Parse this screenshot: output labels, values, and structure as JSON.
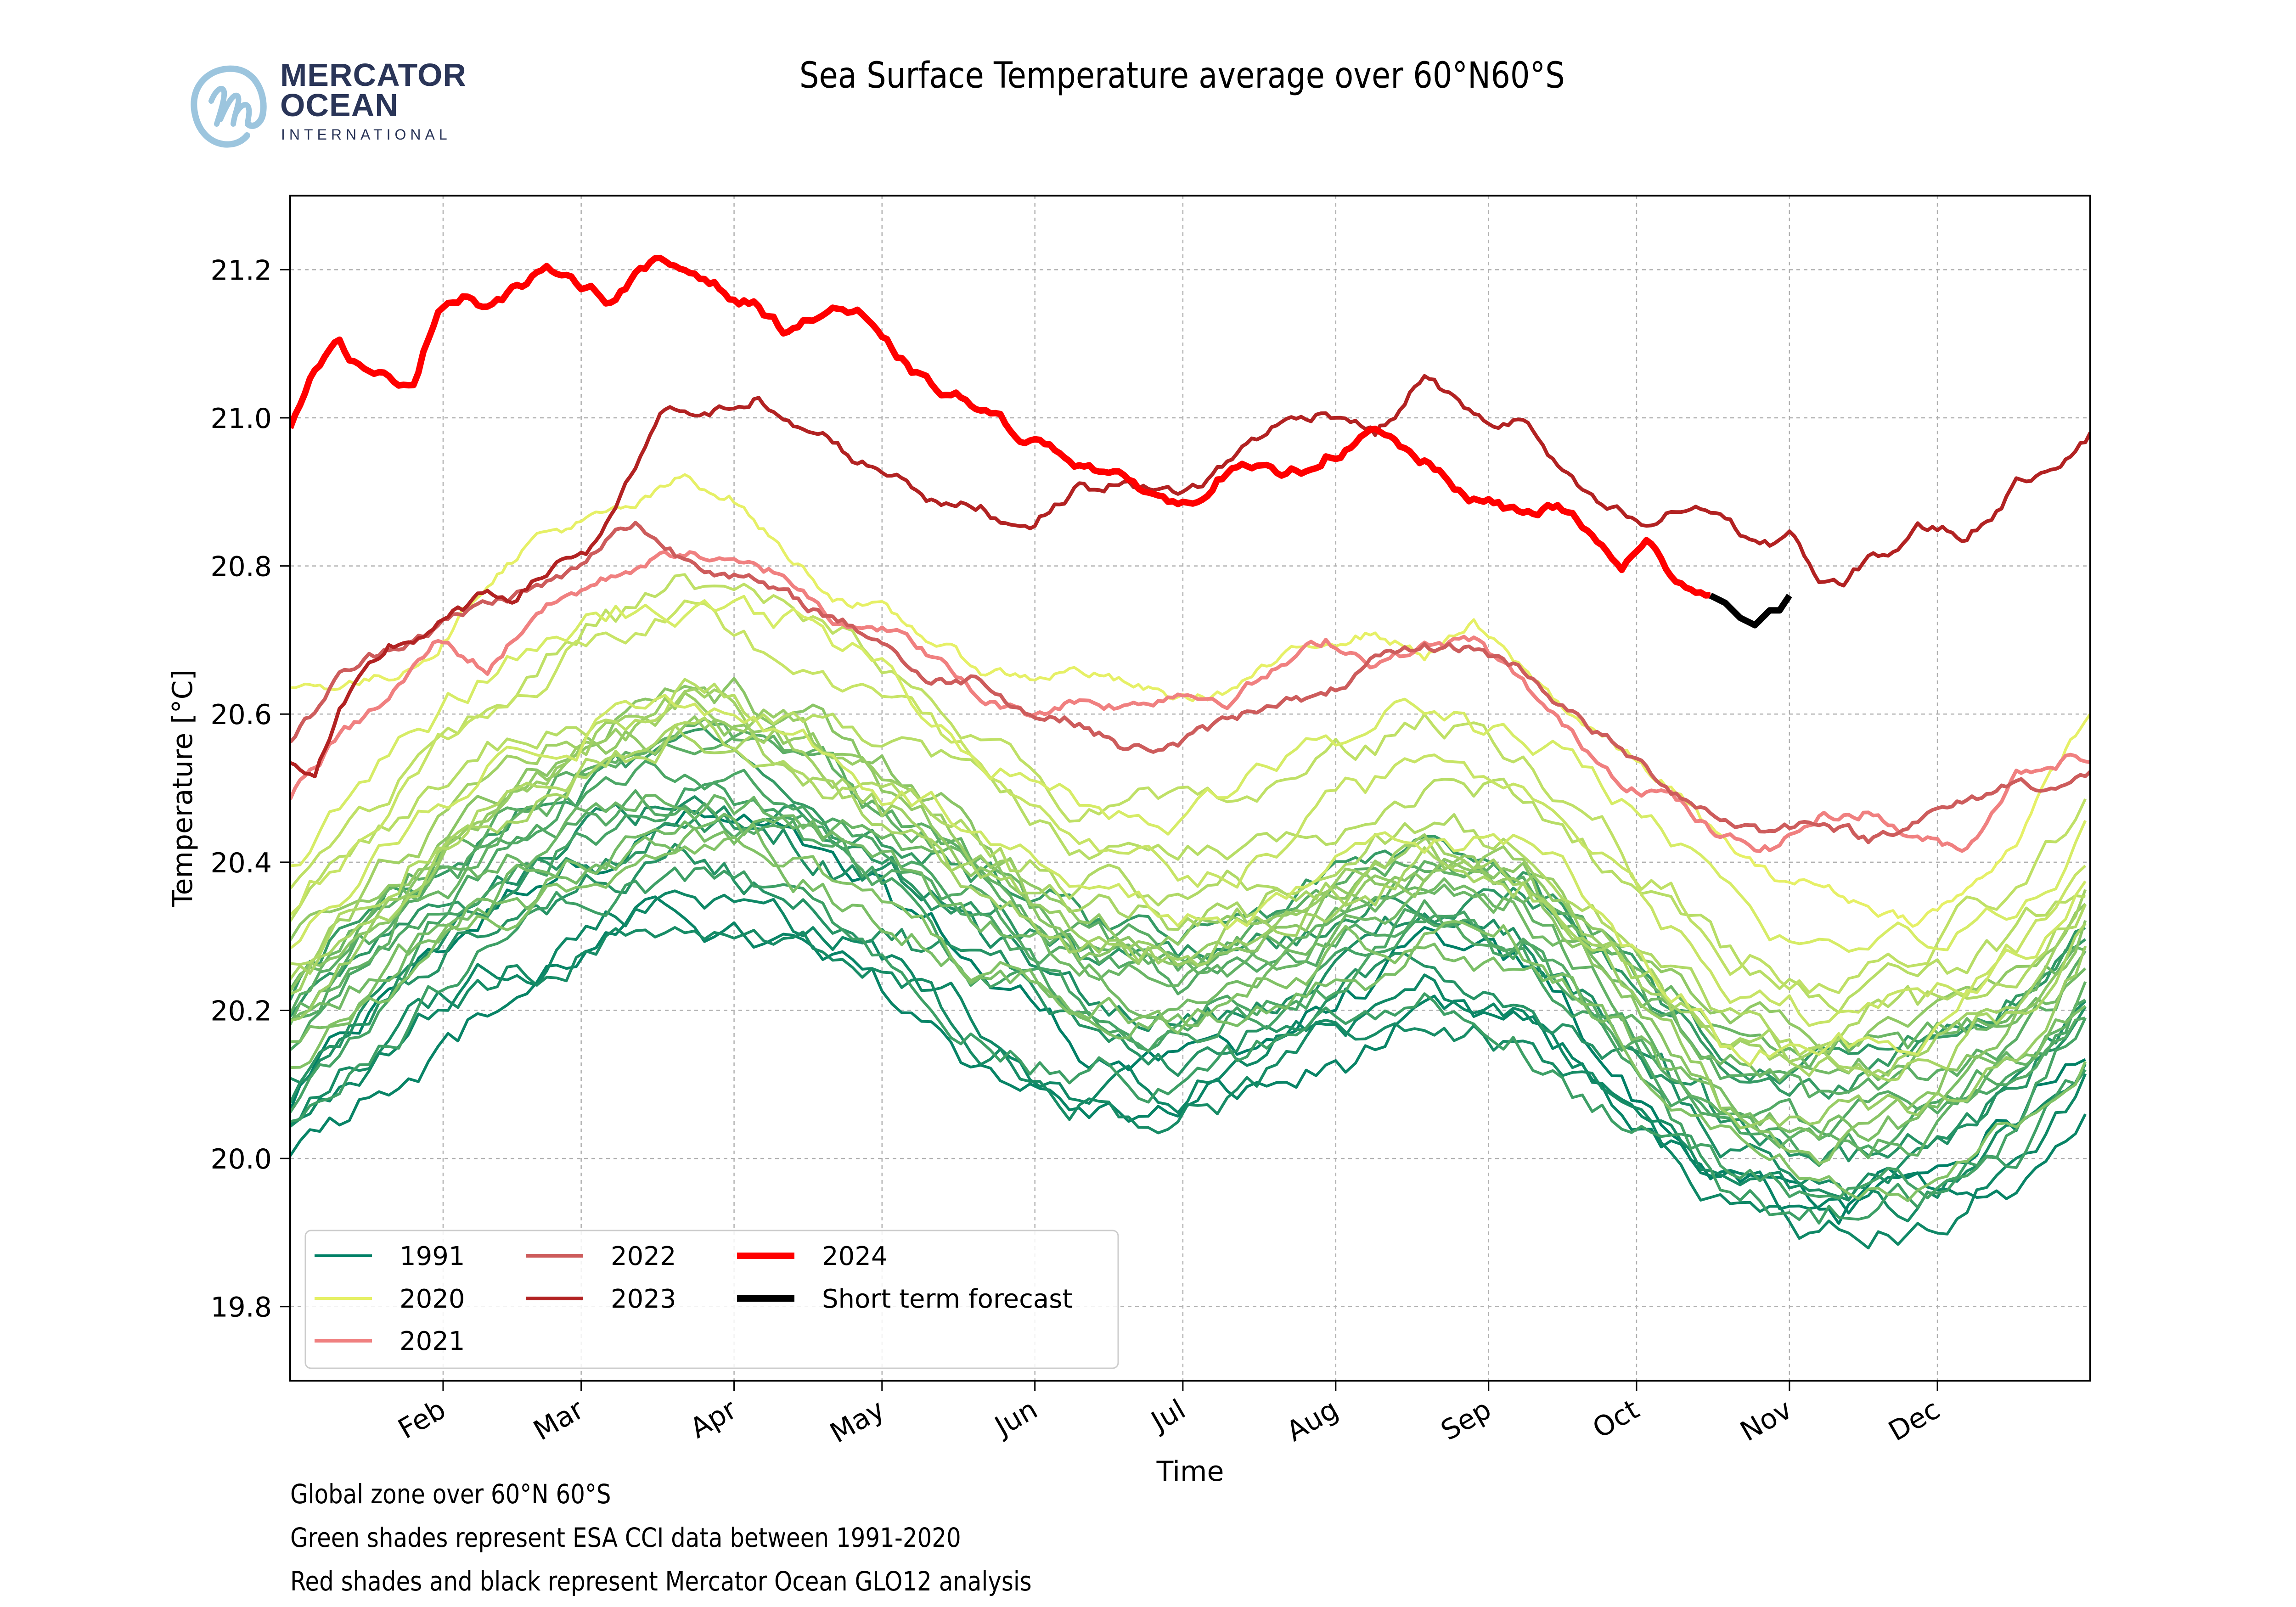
{
  "logo": {
    "line1": "MERCATOR",
    "line2": "OCEAN",
    "line3": "INTERNATIONAL",
    "brand_color": "#2a3558",
    "mark_color": "#9cc5de"
  },
  "footnotes": [
    "Global zone over 60°N 60°S",
    "Green shades represent ESA CCI data between 1991-2020",
    "Red shades and black represent Mercator Ocean GLO12 analysis"
  ],
  "chart_data": {
    "type": "line",
    "title": "Sea Surface Temperature average over 60°N60°S",
    "xlabel": "Time",
    "ylabel": "Temperature [°C]",
    "xlim_day_of_year": [
      0,
      365
    ],
    "ylim": [
      19.7,
      21.3
    ],
    "grid": true,
    "legend_position": "lower-left",
    "x_ticks": [
      {
        "label": "Feb",
        "day": 31
      },
      {
        "label": "Mar",
        "day": 59
      },
      {
        "label": "Apr",
        "day": 90
      },
      {
        "label": "May",
        "day": 120
      },
      {
        "label": "Jun",
        "day": 151
      },
      {
        "label": "Jul",
        "day": 181
      },
      {
        "label": "Aug",
        "day": 212
      },
      {
        "label": "Sep",
        "day": 243
      },
      {
        "label": "Oct",
        "day": 273
      },
      {
        "label": "Nov",
        "day": 304
      },
      {
        "label": "Dec",
        "day": 334
      }
    ],
    "y_ticks": [
      19.8,
      20.0,
      20.2,
      20.4,
      20.6,
      20.8,
      21.0,
      21.2
    ],
    "legend": [
      {
        "label": "1991",
        "color": "#008066"
      },
      {
        "label": "2020",
        "color": "#e6f066"
      },
      {
        "label": "2021",
        "color": "#f08080"
      },
      {
        "label": "2022",
        "color": "#cd5c5c"
      },
      {
        "label": "2023",
        "color": "#b22222"
      },
      {
        "label": "2024",
        "color": "#ff0000"
      },
      {
        "label": "Short term forecast",
        "color": "#000000"
      }
    ],
    "series": [
      {
        "name": "2024",
        "color": "#ff0000",
        "width": "thick",
        "x": [
          0,
          5,
          10,
          15,
          20,
          25,
          30,
          35,
          40,
          45,
          50,
          55,
          60,
          65,
          70,
          75,
          80,
          85,
          90,
          95,
          100,
          105,
          110,
          115,
          120,
          125,
          130,
          135,
          140,
          145,
          150,
          155,
          160,
          165,
          170,
          175,
          180,
          185,
          190,
          195,
          200,
          205,
          210,
          215,
          220,
          225,
          230,
          235,
          240,
          245,
          250,
          255,
          260,
          265,
          270,
          275,
          280,
          285,
          288
        ],
        "values": [
          20.99,
          21.07,
          21.1,
          21.06,
          21.05,
          21.05,
          21.15,
          21.17,
          21.15,
          21.17,
          21.19,
          21.2,
          21.18,
          21.16,
          21.19,
          21.21,
          21.2,
          21.19,
          21.16,
          21.15,
          21.12,
          21.13,
          21.15,
          21.14,
          21.1,
          21.07,
          21.04,
          21.03,
          21.01,
          20.99,
          20.97,
          20.96,
          20.94,
          20.93,
          20.91,
          20.9,
          20.88,
          20.9,
          20.93,
          20.93,
          20.92,
          20.93,
          20.95,
          20.96,
          20.98,
          20.96,
          20.94,
          20.91,
          20.89,
          20.88,
          20.87,
          20.88,
          20.87,
          20.83,
          20.8,
          20.83,
          20.79,
          20.77,
          20.76
        ]
      },
      {
        "name": "Short term forecast",
        "color": "#000000",
        "width": "thick",
        "x": [
          288,
          291,
          294,
          297,
          300,
          302,
          304
        ],
        "values": [
          20.76,
          20.75,
          20.73,
          20.72,
          20.74,
          20.74,
          20.76
        ]
      },
      {
        "name": "2023",
        "color": "#b22222",
        "width": "medium",
        "x": [
          0,
          5,
          10,
          15,
          20,
          25,
          30,
          35,
          40,
          45,
          50,
          55,
          60,
          65,
          70,
          75,
          80,
          85,
          90,
          95,
          100,
          105,
          110,
          115,
          120,
          125,
          130,
          135,
          140,
          145,
          150,
          155,
          160,
          165,
          170,
          175,
          180,
          185,
          190,
          195,
          200,
          205,
          210,
          215,
          220,
          225,
          230,
          235,
          240,
          245,
          250,
          255,
          260,
          265,
          270,
          275,
          280,
          285,
          290,
          295,
          300,
          305,
          310,
          315,
          320,
          325,
          330,
          335,
          340,
          345,
          350,
          355,
          360,
          365
        ],
        "values": [
          20.53,
          20.52,
          20.6,
          20.65,
          20.69,
          20.7,
          20.72,
          20.74,
          20.76,
          20.76,
          20.78,
          20.81,
          20.82,
          20.86,
          20.93,
          21.0,
          21.01,
          21.0,
          21.02,
          21.03,
          20.99,
          20.98,
          20.97,
          20.94,
          20.93,
          20.92,
          20.89,
          20.88,
          20.88,
          20.86,
          20.86,
          20.88,
          20.91,
          20.9,
          20.92,
          20.9,
          20.9,
          20.91,
          20.94,
          20.97,
          20.99,
          21.0,
          21.01,
          21.0,
          20.98,
          21.01,
          21.06,
          21.03,
          21.0,
          20.99,
          21.0,
          20.95,
          20.91,
          20.88,
          20.87,
          20.85,
          20.87,
          20.88,
          20.87,
          20.84,
          20.83,
          20.84,
          20.78,
          20.77,
          20.81,
          20.82,
          20.85,
          20.85,
          20.84,
          20.87,
          20.91,
          20.93,
          20.95,
          20.98
        ]
      },
      {
        "name": "2022",
        "color": "#cd5c5c",
        "width": "medium",
        "x": [
          0,
          10,
          20,
          30,
          40,
          50,
          60,
          65,
          70,
          75,
          80,
          90,
          100,
          110,
          120,
          130,
          140,
          150,
          160,
          170,
          180,
          190,
          200,
          210,
          220,
          230,
          240,
          250,
          260,
          270,
          280,
          290,
          300,
          310,
          320,
          330,
          340,
          350,
          360,
          365
        ],
        "values": [
          20.56,
          20.65,
          20.69,
          20.72,
          20.75,
          20.77,
          20.8,
          20.84,
          20.86,
          20.83,
          20.81,
          20.79,
          20.76,
          20.73,
          20.7,
          20.64,
          20.65,
          20.6,
          20.59,
          20.55,
          20.56,
          20.59,
          20.62,
          20.62,
          20.67,
          20.69,
          20.69,
          20.66,
          20.6,
          20.55,
          20.5,
          20.46,
          20.44,
          20.46,
          20.43,
          20.46,
          20.48,
          20.51,
          20.5,
          20.52
        ]
      },
      {
        "name": "2021",
        "color": "#f08080",
        "width": "medium",
        "x": [
          0,
          10,
          20,
          30,
          40,
          50,
          60,
          70,
          80,
          90,
          100,
          110,
          120,
          130,
          140,
          150,
          160,
          170,
          180,
          190,
          200,
          210,
          220,
          230,
          240,
          250,
          260,
          270,
          280,
          290,
          300,
          310,
          320,
          330,
          340,
          350,
          360,
          365
        ],
        "values": [
          20.49,
          20.57,
          20.62,
          20.7,
          20.66,
          20.74,
          20.77,
          20.8,
          20.82,
          20.8,
          20.79,
          20.73,
          20.72,
          20.68,
          20.62,
          20.6,
          20.62,
          20.61,
          20.63,
          20.62,
          20.66,
          20.7,
          20.67,
          20.69,
          20.7,
          20.64,
          20.57,
          20.51,
          20.49,
          20.43,
          20.42,
          20.46,
          20.47,
          20.43,
          20.42,
          20.52,
          20.54,
          20.54
        ]
      },
      {
        "name": "2020",
        "color": "#e6f066",
        "width": "thin",
        "x": [
          0,
          10,
          20,
          30,
          40,
          50,
          60,
          70,
          80,
          90,
          100,
          110,
          120,
          130,
          140,
          150,
          160,
          170,
          180,
          190,
          200,
          210,
          220,
          230,
          240,
          250,
          260,
          270,
          280,
          290,
          300,
          310,
          320,
          330,
          340,
          350,
          360,
          365
        ],
        "values": [
          20.64,
          20.64,
          20.65,
          20.69,
          20.78,
          20.84,
          20.86,
          20.88,
          20.92,
          20.89,
          20.82,
          20.76,
          20.74,
          20.7,
          20.66,
          20.65,
          20.66,
          20.64,
          20.62,
          20.63,
          20.67,
          20.7,
          20.71,
          20.68,
          20.72,
          20.66,
          20.6,
          20.55,
          20.5,
          20.43,
          20.38,
          20.37,
          20.34,
          20.32,
          20.36,
          20.43,
          20.55,
          20.6
        ]
      }
    ],
    "climatology_years": {
      "years": [
        1991,
        1992,
        1993,
        1994,
        1995,
        1996,
        1997,
        1998,
        1999,
        2000,
        2001,
        2002,
        2003,
        2004,
        2005,
        2006,
        2007,
        2008,
        2009,
        2010,
        2011,
        2012,
        2013,
        2014,
        2015,
        2016,
        2017,
        2018,
        2019
      ],
      "color_range": [
        "#008066",
        "#d6ec66"
      ],
      "seasonal_shape_x": [
        0,
        30,
        60,
        80,
        100,
        130,
        160,
        180,
        200,
        230,
        250,
        270,
        290,
        310,
        330,
        350,
        365
      ],
      "seasonal_shape_values": [
        0.0,
        0.18,
        0.3,
        0.34,
        0.3,
        0.2,
        0.08,
        0.06,
        0.1,
        0.18,
        0.15,
        0.04,
        -0.08,
        -0.12,
        -0.1,
        -0.03,
        0.08
      ],
      "year_offsets": [
        20.07,
        20.02,
        20.03,
        20.05,
        20.12,
        20.09,
        20.18,
        20.22,
        20.06,
        20.08,
        20.15,
        20.19,
        20.2,
        20.17,
        20.22,
        20.18,
        20.14,
        20.12,
        20.21,
        20.28,
        20.18,
        20.22,
        20.24,
        20.28,
        20.34,
        20.38,
        20.33,
        20.3,
        20.4
      ]
    }
  }
}
